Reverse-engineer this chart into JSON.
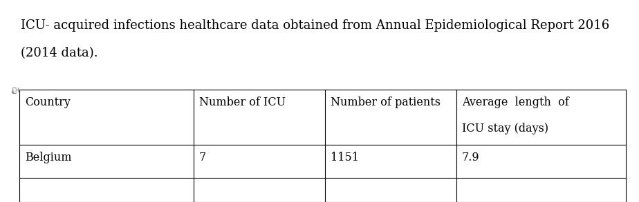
{
  "title_line1": "ICU- acquired infections healthcare data obtained from Annual Epidemiological Report 2016",
  "title_line2": "(2014 data).",
  "col_headers_line1": [
    "Country",
    "Number of ICU",
    "Number of patients",
    "Average  length  of"
  ],
  "col_headers_line2": [
    "",
    "",
    "",
    "ICU stay (days)"
  ],
  "rows": [
    [
      "Belgium",
      "7",
      "1151",
      "7.9"
    ]
  ],
  "font_color": "#000000",
  "background_color": "#ffffff",
  "font_size": 11.5,
  "title_font_size": 13
}
